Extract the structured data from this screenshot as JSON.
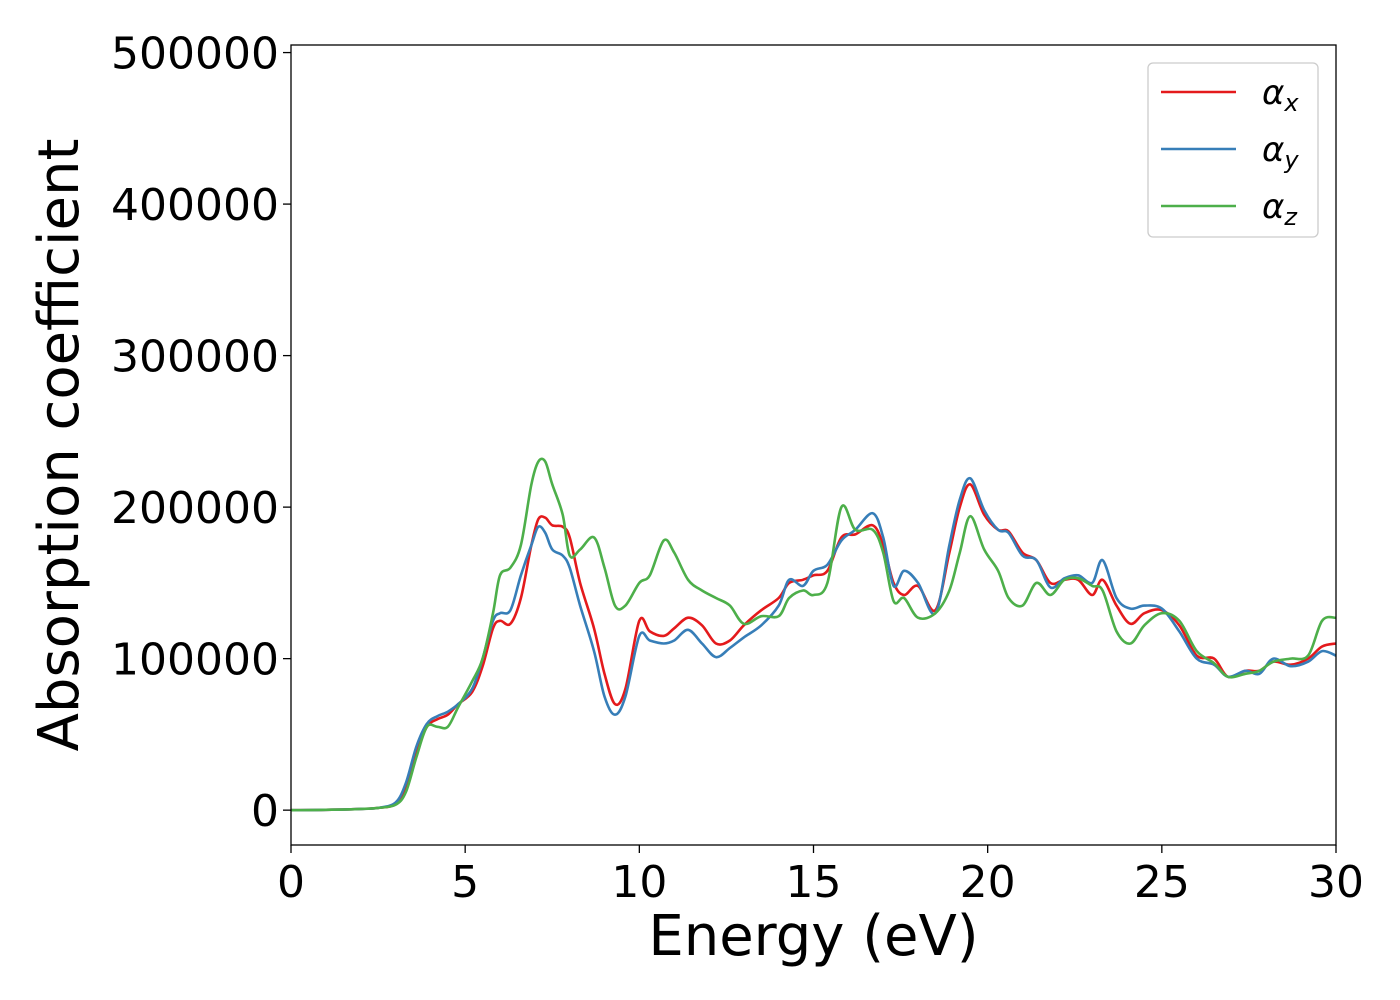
{
  "chart_data": {
    "type": "line",
    "title": "",
    "xlabel": "Energy (eV)",
    "ylabel": "Absorption coefficient",
    "xlim": [
      0,
      30
    ],
    "ylim": [
      -23000,
      505000
    ],
    "xticks": [
      0,
      5,
      10,
      15,
      20,
      25,
      30
    ],
    "yticks": [
      0,
      100000,
      200000,
      300000,
      400000,
      500000
    ],
    "xtick_labels": [
      "0",
      "5",
      "10",
      "15",
      "20",
      "25",
      "30"
    ],
    "ytick_labels": [
      "0",
      "100000",
      "200000",
      "300000",
      "400000",
      "500000"
    ],
    "grid": false,
    "legend_position": "top-right",
    "series": [
      {
        "name": "αx",
        "symbol": "α",
        "subscript": "x",
        "color": "#e41a1c",
        "points": [
          [
            0,
            0
          ],
          [
            1,
            200
          ],
          [
            2,
            800
          ],
          [
            2.5,
            1500
          ],
          [
            3,
            4000
          ],
          [
            3.3,
            15000
          ],
          [
            3.6,
            38000
          ],
          [
            3.9,
            55000
          ],
          [
            4.2,
            60000
          ],
          [
            4.5,
            63000
          ],
          [
            4.8,
            70000
          ],
          [
            5.2,
            78000
          ],
          [
            5.5,
            95000
          ],
          [
            5.8,
            120000
          ],
          [
            6.0,
            125000
          ],
          [
            6.3,
            123000
          ],
          [
            6.6,
            140000
          ],
          [
            6.9,
            175000
          ],
          [
            7.1,
            192000
          ],
          [
            7.3,
            193000
          ],
          [
            7.5,
            188000
          ],
          [
            7.8,
            187000
          ],
          [
            8.0,
            180000
          ],
          [
            8.3,
            150000
          ],
          [
            8.7,
            120000
          ],
          [
            9.0,
            90000
          ],
          [
            9.3,
            70000
          ],
          [
            9.6,
            80000
          ],
          [
            10.0,
            125000
          ],
          [
            10.3,
            118000
          ],
          [
            10.7,
            115000
          ],
          [
            11.0,
            120000
          ],
          [
            11.4,
            127000
          ],
          [
            11.8,
            122000
          ],
          [
            12.2,
            110000
          ],
          [
            12.6,
            112000
          ],
          [
            13.0,
            122000
          ],
          [
            13.5,
            132000
          ],
          [
            14.0,
            140000
          ],
          [
            14.3,
            150000
          ],
          [
            14.7,
            152000
          ],
          [
            15.0,
            155000
          ],
          [
            15.4,
            158000
          ],
          [
            15.8,
            180000
          ],
          [
            16.2,
            182000
          ],
          [
            16.7,
            188000
          ],
          [
            17.0,
            175000
          ],
          [
            17.3,
            150000
          ],
          [
            17.6,
            142000
          ],
          [
            18.0,
            148000
          ],
          [
            18.5,
            132000
          ],
          [
            18.9,
            170000
          ],
          [
            19.2,
            200000
          ],
          [
            19.5,
            215000
          ],
          [
            19.9,
            195000
          ],
          [
            20.3,
            185000
          ],
          [
            20.6,
            184000
          ],
          [
            21.0,
            170000
          ],
          [
            21.4,
            165000
          ],
          [
            21.8,
            150000
          ],
          [
            22.2,
            152000
          ],
          [
            22.6,
            152000
          ],
          [
            23.0,
            142000
          ],
          [
            23.3,
            152000
          ],
          [
            23.7,
            135000
          ],
          [
            24.1,
            123000
          ],
          [
            24.5,
            130000
          ],
          [
            25.0,
            132000
          ],
          [
            25.5,
            122000
          ],
          [
            26.0,
            102000
          ],
          [
            26.5,
            100000
          ],
          [
            26.9,
            88000
          ],
          [
            27.4,
            92000
          ],
          [
            27.8,
            92000
          ],
          [
            28.2,
            98000
          ],
          [
            28.7,
            96000
          ],
          [
            29.2,
            100000
          ],
          [
            29.6,
            108000
          ],
          [
            30,
            110000
          ]
        ]
      },
      {
        "name": "αy",
        "symbol": "α",
        "subscript": "y",
        "color": "#377eb8",
        "points": [
          [
            0,
            0
          ],
          [
            1,
            200
          ],
          [
            2,
            800
          ],
          [
            2.5,
            1500
          ],
          [
            3,
            5000
          ],
          [
            3.3,
            18000
          ],
          [
            3.6,
            42000
          ],
          [
            3.9,
            57000
          ],
          [
            4.2,
            62000
          ],
          [
            4.5,
            65000
          ],
          [
            4.8,
            70000
          ],
          [
            5.2,
            80000
          ],
          [
            5.5,
            100000
          ],
          [
            5.8,
            125000
          ],
          [
            6.0,
            130000
          ],
          [
            6.3,
            132000
          ],
          [
            6.6,
            155000
          ],
          [
            6.9,
            175000
          ],
          [
            7.1,
            187000
          ],
          [
            7.3,
            183000
          ],
          [
            7.5,
            172000
          ],
          [
            7.8,
            168000
          ],
          [
            8.0,
            160000
          ],
          [
            8.3,
            135000
          ],
          [
            8.7,
            105000
          ],
          [
            9.0,
            75000
          ],
          [
            9.3,
            63000
          ],
          [
            9.6,
            75000
          ],
          [
            10.0,
            115000
          ],
          [
            10.3,
            112000
          ],
          [
            10.7,
            110000
          ],
          [
            11.0,
            112000
          ],
          [
            11.4,
            119000
          ],
          [
            11.8,
            110000
          ],
          [
            12.2,
            101000
          ],
          [
            12.6,
            107000
          ],
          [
            13.0,
            114000
          ],
          [
            13.5,
            122000
          ],
          [
            14.0,
            135000
          ],
          [
            14.3,
            152000
          ],
          [
            14.7,
            148000
          ],
          [
            15.0,
            158000
          ],
          [
            15.4,
            162000
          ],
          [
            15.8,
            178000
          ],
          [
            16.2,
            185000
          ],
          [
            16.7,
            196000
          ],
          [
            17.0,
            180000
          ],
          [
            17.3,
            148000
          ],
          [
            17.6,
            158000
          ],
          [
            18.0,
            150000
          ],
          [
            18.5,
            130000
          ],
          [
            18.9,
            175000
          ],
          [
            19.2,
            205000
          ],
          [
            19.5,
            219000
          ],
          [
            19.9,
            198000
          ],
          [
            20.3,
            185000
          ],
          [
            20.6,
            183000
          ],
          [
            21.0,
            168000
          ],
          [
            21.4,
            165000
          ],
          [
            21.8,
            147000
          ],
          [
            22.2,
            153000
          ],
          [
            22.6,
            155000
          ],
          [
            23.0,
            150000
          ],
          [
            23.3,
            165000
          ],
          [
            23.7,
            140000
          ],
          [
            24.1,
            133000
          ],
          [
            24.5,
            135000
          ],
          [
            25.0,
            133000
          ],
          [
            25.5,
            118000
          ],
          [
            26.0,
            100000
          ],
          [
            26.5,
            96000
          ],
          [
            26.9,
            88000
          ],
          [
            27.4,
            92000
          ],
          [
            27.8,
            90000
          ],
          [
            28.2,
            100000
          ],
          [
            28.7,
            95000
          ],
          [
            29.2,
            98000
          ],
          [
            29.6,
            105000
          ],
          [
            30,
            102000
          ]
        ]
      },
      {
        "name": "αz",
        "symbol": "α",
        "subscript": "z",
        "color": "#4daf4a",
        "points": [
          [
            0,
            0
          ],
          [
            1,
            200
          ],
          [
            2,
            800
          ],
          [
            2.5,
            1500
          ],
          [
            3,
            3500
          ],
          [
            3.3,
            12000
          ],
          [
            3.6,
            35000
          ],
          [
            3.9,
            55000
          ],
          [
            4.2,
            55000
          ],
          [
            4.5,
            55000
          ],
          [
            4.8,
            68000
          ],
          [
            5.2,
            85000
          ],
          [
            5.5,
            100000
          ],
          [
            5.8,
            130000
          ],
          [
            6.0,
            155000
          ],
          [
            6.3,
            160000
          ],
          [
            6.6,
            175000
          ],
          [
            6.9,
            215000
          ],
          [
            7.1,
            230000
          ],
          [
            7.3,
            230000
          ],
          [
            7.5,
            215000
          ],
          [
            7.8,
            195000
          ],
          [
            8.0,
            168000
          ],
          [
            8.3,
            172000
          ],
          [
            8.7,
            180000
          ],
          [
            9.0,
            160000
          ],
          [
            9.3,
            135000
          ],
          [
            9.6,
            135000
          ],
          [
            10.0,
            150000
          ],
          [
            10.3,
            155000
          ],
          [
            10.7,
            178000
          ],
          [
            11.0,
            170000
          ],
          [
            11.4,
            152000
          ],
          [
            11.8,
            145000
          ],
          [
            12.2,
            140000
          ],
          [
            12.6,
            135000
          ],
          [
            13.0,
            123000
          ],
          [
            13.5,
            128000
          ],
          [
            14.0,
            128000
          ],
          [
            14.3,
            140000
          ],
          [
            14.7,
            145000
          ],
          [
            15.0,
            142000
          ],
          [
            15.4,
            150000
          ],
          [
            15.8,
            200000
          ],
          [
            16.2,
            185000
          ],
          [
            16.7,
            185000
          ],
          [
            17.0,
            170000
          ],
          [
            17.3,
            138000
          ],
          [
            17.6,
            140000
          ],
          [
            18.0,
            127000
          ],
          [
            18.5,
            130000
          ],
          [
            18.9,
            145000
          ],
          [
            19.2,
            170000
          ],
          [
            19.5,
            194000
          ],
          [
            19.9,
            172000
          ],
          [
            20.3,
            158000
          ],
          [
            20.6,
            140000
          ],
          [
            21.0,
            135000
          ],
          [
            21.4,
            150000
          ],
          [
            21.8,
            142000
          ],
          [
            22.2,
            152000
          ],
          [
            22.6,
            153000
          ],
          [
            23.0,
            148000
          ],
          [
            23.3,
            145000
          ],
          [
            23.7,
            118000
          ],
          [
            24.1,
            110000
          ],
          [
            24.5,
            122000
          ],
          [
            25.0,
            130000
          ],
          [
            25.5,
            125000
          ],
          [
            26.0,
            105000
          ],
          [
            26.5,
            97000
          ],
          [
            26.9,
            88000
          ],
          [
            27.4,
            90000
          ],
          [
            27.8,
            92000
          ],
          [
            28.2,
            98000
          ],
          [
            28.7,
            100000
          ],
          [
            29.2,
            102000
          ],
          [
            29.6,
            125000
          ],
          [
            30,
            127000
          ]
        ]
      }
    ]
  }
}
